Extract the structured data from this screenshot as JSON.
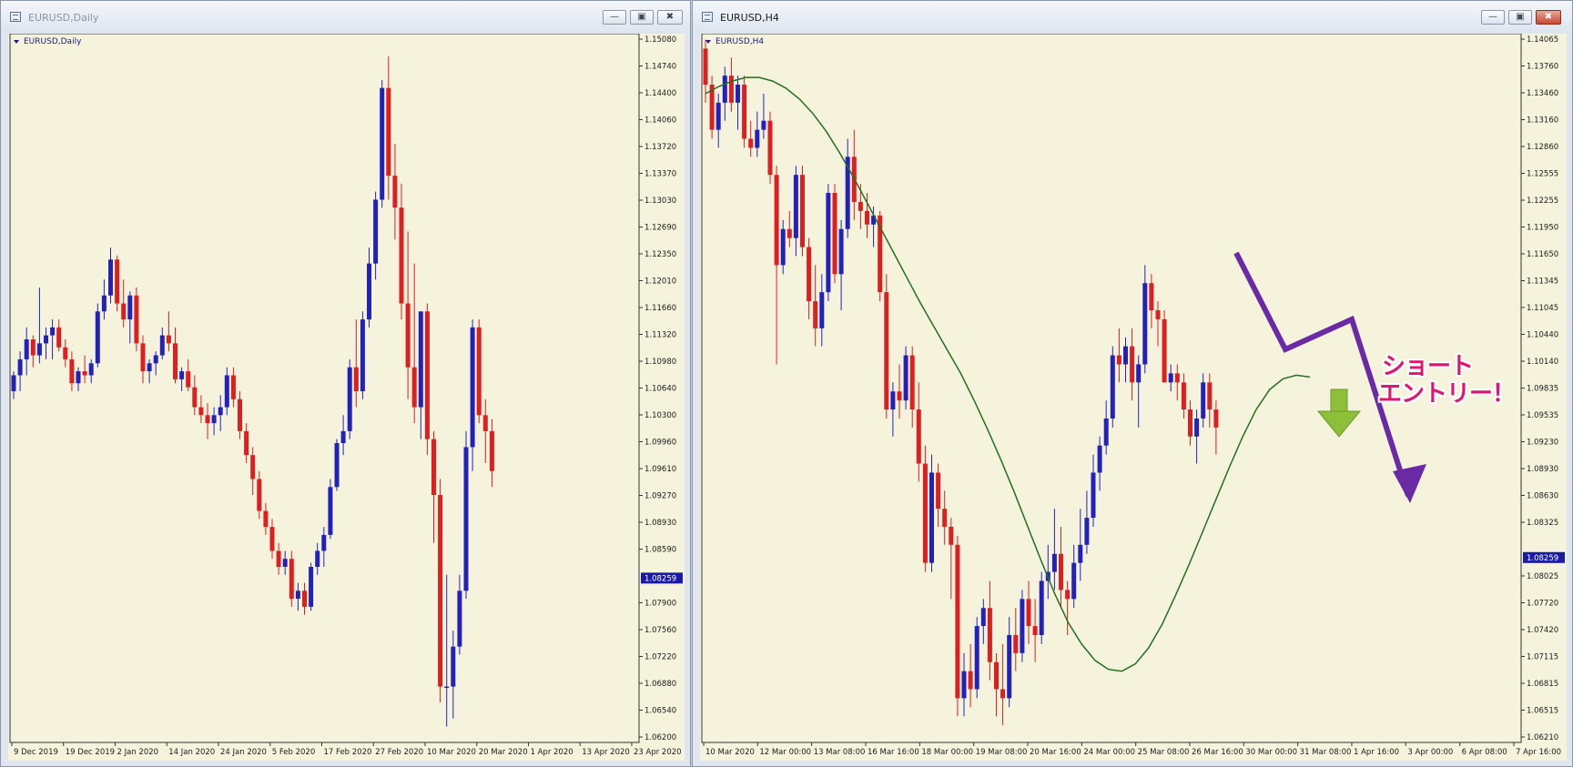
{
  "colors": {
    "bull": "#2222bb",
    "bear": "#dd1f1f",
    "ma": "#207020",
    "background": "#f6f3dd",
    "annotation": "#e0146e",
    "arrow_purple": "#6a2aa6",
    "arrow_green": "#8dbf3a"
  },
  "windows": [
    {
      "title": "EURUSD,Daily",
      "symbol_label": "EURUSD,Daily",
      "price_badge": "1.08259",
      "state": "inactive"
    },
    {
      "title": "EURUSD,H4",
      "symbol_label": "EURUSD,H4",
      "price_badge": "1.08259",
      "state": "active"
    }
  ],
  "annotation": {
    "line1": "ショート",
    "line2": "エントリー！"
  },
  "icons": {
    "window_icon": "chart-window-icon",
    "minimize": "minimize-icon",
    "maximize": "maximize-icon",
    "close": "close-icon",
    "entry_arrow": "green-down-arrow-icon"
  },
  "chart_data": [
    {
      "type": "candlestick",
      "title": "EURUSD,Daily",
      "y_ticks": [
        "1.15080",
        "1.14740",
        "1.14400",
        "1.14060",
        "1.13720",
        "1.13370",
        "1.13030",
        "1.12690",
        "1.12350",
        "1.12010",
        "1.11660",
        "1.11320",
        "1.10980",
        "1.10640",
        "1.10300",
        "1.09960",
        "1.09610",
        "1.09270",
        "1.08930",
        "1.08590",
        "1.08259",
        "1.07900",
        "1.07560",
        "1.07220",
        "1.06880",
        "1.06540",
        "1.06200"
      ],
      "ylim": [
        1.062,
        1.1508
      ],
      "x_ticks": [
        "9 Dec 2019",
        "19 Dec 2019",
        "2 Jan 2020",
        "14 Jan 2020",
        "24 Jan 2020",
        "5 Feb 2020",
        "17 Feb 2020",
        "27 Feb 2020",
        "10 Mar 2020",
        "20 Mar 2020",
        "1 Apr 2020",
        "13 Apr 2020",
        "23 Apr 2020"
      ],
      "current_price": 1.08259,
      "candles": [
        [
          1.106,
          1.1085,
          1.105,
          1.108
        ],
        [
          1.108,
          1.111,
          1.106,
          1.11
        ],
        [
          1.11,
          1.114,
          1.108,
          1.1125
        ],
        [
          1.1125,
          1.113,
          1.109,
          1.1105
        ],
        [
          1.1105,
          1.119,
          1.1095,
          1.112
        ],
        [
          1.112,
          1.114,
          1.11,
          1.113
        ],
        [
          1.113,
          1.115,
          1.11,
          1.114
        ],
        [
          1.114,
          1.115,
          1.111,
          1.1115
        ],
        [
          1.1115,
          1.1125,
          1.109,
          1.11
        ],
        [
          1.11,
          1.111,
          1.106,
          1.107
        ],
        [
          1.107,
          1.109,
          1.106,
          1.1085
        ],
        [
          1.1085,
          1.1105,
          1.107,
          1.108
        ],
        [
          1.108,
          1.11,
          1.107,
          1.1095
        ],
        [
          1.1095,
          1.117,
          1.109,
          1.116
        ],
        [
          1.116,
          1.12,
          1.115,
          1.118
        ],
        [
          1.118,
          1.124,
          1.117,
          1.1225
        ],
        [
          1.1225,
          1.123,
          1.116,
          1.117
        ],
        [
          1.117,
          1.12,
          1.114,
          1.115
        ],
        [
          1.115,
          1.1185,
          1.112,
          1.118
        ],
        [
          1.118,
          1.119,
          1.111,
          1.112
        ],
        [
          1.112,
          1.113,
          1.107,
          1.1085
        ],
        [
          1.1085,
          1.11,
          1.107,
          1.1095
        ],
        [
          1.1095,
          1.111,
          1.108,
          1.1105
        ],
        [
          1.1105,
          1.114,
          1.11,
          1.113
        ],
        [
          1.113,
          1.116,
          1.111,
          1.112
        ],
        [
          1.112,
          1.114,
          1.107,
          1.1075
        ],
        [
          1.1075,
          1.109,
          1.106,
          1.1085
        ],
        [
          1.1085,
          1.11,
          1.106,
          1.1065
        ],
        [
          1.1065,
          1.108,
          1.103,
          1.104
        ],
        [
          1.104,
          1.1055,
          1.102,
          1.103
        ],
        [
          1.103,
          1.1045,
          1.1,
          1.102
        ],
        [
          1.102,
          1.104,
          1.1005,
          1.103
        ],
        [
          1.103,
          1.1055,
          1.101,
          1.104
        ],
        [
          1.104,
          1.109,
          1.103,
          1.108
        ],
        [
          1.108,
          1.109,
          1.104,
          1.105
        ],
        [
          1.105,
          1.106,
          1.1,
          1.101
        ],
        [
          1.101,
          1.102,
          1.097,
          1.098
        ],
        [
          1.098,
          1.099,
          1.093,
          1.095
        ],
        [
          1.095,
          1.096,
          1.09,
          1.091
        ],
        [
          1.091,
          1.092,
          1.088,
          1.089
        ],
        [
          1.089,
          1.09,
          1.085,
          1.086
        ],
        [
          1.086,
          1.087,
          1.083,
          1.084
        ],
        [
          1.084,
          1.086,
          1.083,
          1.085
        ],
        [
          1.085,
          1.086,
          1.079,
          1.08
        ],
        [
          1.08,
          1.082,
          1.0785,
          1.081
        ],
        [
          1.081,
          1.082,
          1.078,
          1.079
        ],
        [
          1.079,
          1.0845,
          1.0785,
          1.084
        ],
        [
          1.084,
          1.087,
          1.083,
          1.086
        ],
        [
          1.086,
          1.089,
          1.084,
          1.088
        ],
        [
          1.088,
          1.095,
          1.0875,
          1.094
        ],
        [
          1.094,
          1.1,
          1.0935,
          1.0995
        ],
        [
          1.0995,
          1.103,
          1.098,
          1.101
        ],
        [
          1.101,
          1.11,
          1.1,
          1.109
        ],
        [
          1.109,
          1.115,
          1.104,
          1.106
        ],
        [
          1.106,
          1.116,
          1.105,
          1.115
        ],
        [
          1.115,
          1.124,
          1.114,
          1.122
        ],
        [
          1.122,
          1.131,
          1.12,
          1.13
        ],
        [
          1.13,
          1.145,
          1.129,
          1.144
        ],
        [
          1.144,
          1.148,
          1.13,
          1.133
        ],
        [
          1.133,
          1.137,
          1.125,
          1.129
        ],
        [
          1.129,
          1.132,
          1.115,
          1.117
        ],
        [
          1.117,
          1.126,
          1.105,
          1.109
        ],
        [
          1.109,
          1.122,
          1.102,
          1.104
        ],
        [
          1.104,
          1.116,
          1.1,
          1.116
        ],
        [
          1.116,
          1.117,
          1.098,
          1.1
        ],
        [
          1.1,
          1.101,
          1.087,
          1.093
        ],
        [
          1.093,
          1.095,
          1.067,
          1.069
        ],
        [
          1.069,
          1.083,
          1.064,
          1.069
        ],
        [
          1.069,
          1.076,
          1.065,
          1.074
        ],
        [
          1.074,
          1.083,
          1.073,
          1.081
        ],
        [
          1.081,
          1.101,
          1.08,
          1.099
        ],
        [
          1.099,
          1.115,
          1.096,
          1.114
        ],
        [
          1.114,
          1.115,
          1.102,
          1.103
        ],
        [
          1.103,
          1.105,
          1.097,
          1.101
        ],
        [
          1.101,
          1.1025,
          1.094,
          1.096
        ]
      ]
    },
    {
      "type": "candlestick",
      "title": "EURUSD,H4",
      "y_ticks": [
        "1.14065",
        "1.13760",
        "1.13460",
        "1.13160",
        "1.12860",
        "1.12555",
        "1.12255",
        "1.11950",
        "1.11650",
        "1.11345",
        "1.11045",
        "1.10440",
        "1.10140",
        "1.09835",
        "1.09535",
        "1.09230",
        "1.08930",
        "1.08630",
        "1.08325",
        "1.08259",
        "1.08025",
        "1.07720",
        "1.07420",
        "1.07115",
        "1.06815",
        "1.06515",
        "1.06210"
      ],
      "ylim": [
        1.0621,
        1.14065
      ],
      "x_ticks": [
        "10 Mar 2020",
        "12 Mar 00:00",
        "13 Mar 08:00",
        "16 Mar 16:00",
        "18 Mar 00:00",
        "19 Mar 08:00",
        "20 Mar 16:00",
        "24 Mar 00:00",
        "25 Mar 08:00",
        "26 Mar 16:00",
        "30 Mar 00:00",
        "31 Mar 08:00",
        "1 Apr 16:00",
        "3 Apr 00:00",
        "6 Apr 08:00",
        "7 Apr 16:00"
      ],
      "current_price": 1.08259,
      "candles": [
        [
          1.139,
          1.14,
          1.133,
          1.135
        ],
        [
          1.135,
          1.136,
          1.129,
          1.13
        ],
        [
          1.13,
          1.134,
          1.128,
          1.133
        ],
        [
          1.133,
          1.137,
          1.131,
          1.136
        ],
        [
          1.136,
          1.138,
          1.132,
          1.133
        ],
        [
          1.133,
          1.136,
          1.13,
          1.135
        ],
        [
          1.135,
          1.136,
          1.128,
          1.129
        ],
        [
          1.129,
          1.131,
          1.127,
          1.128
        ],
        [
          1.128,
          1.132,
          1.127,
          1.13
        ],
        [
          1.13,
          1.134,
          1.129,
          1.131
        ],
        [
          1.131,
          1.132,
          1.124,
          1.125
        ],
        [
          1.125,
          1.126,
          1.104,
          1.115
        ],
        [
          1.115,
          1.12,
          1.114,
          1.119
        ],
        [
          1.119,
          1.121,
          1.117,
          1.118
        ],
        [
          1.118,
          1.126,
          1.116,
          1.125
        ],
        [
          1.125,
          1.126,
          1.116,
          1.117
        ],
        [
          1.117,
          1.118,
          1.109,
          1.111
        ],
        [
          1.111,
          1.115,
          1.106,
          1.108
        ],
        [
          1.108,
          1.114,
          1.106,
          1.112
        ],
        [
          1.112,
          1.124,
          1.111,
          1.123
        ],
        [
          1.123,
          1.124,
          1.113,
          1.114
        ],
        [
          1.114,
          1.12,
          1.11,
          1.119
        ],
        [
          1.119,
          1.129,
          1.118,
          1.127
        ],
        [
          1.127,
          1.13,
          1.12,
          1.122
        ],
        [
          1.122,
          1.124,
          1.119,
          1.121
        ],
        [
          1.121,
          1.123,
          1.118,
          1.1195
        ],
        [
          1.1195,
          1.1215,
          1.117,
          1.1205
        ],
        [
          1.1205,
          1.121,
          1.111,
          1.112
        ],
        [
          1.112,
          1.114,
          1.098,
          1.099
        ],
        [
          1.099,
          1.102,
          1.096,
          1.101
        ],
        [
          1.101,
          1.104,
          1.098,
          1.1
        ],
        [
          1.1,
          1.106,
          1.099,
          1.105
        ],
        [
          1.105,
          1.106,
          1.097,
          1.099
        ],
        [
          1.099,
          1.102,
          1.091,
          1.093
        ],
        [
          1.093,
          1.095,
          1.081,
          1.082
        ],
        [
          1.082,
          1.094,
          1.081,
          1.092
        ],
        [
          1.092,
          1.093,
          1.086,
          1.088
        ],
        [
          1.088,
          1.09,
          1.084,
          1.086
        ],
        [
          1.086,
          1.087,
          1.078,
          1.084
        ],
        [
          1.084,
          1.085,
          1.065,
          1.067
        ],
        [
          1.067,
          1.072,
          1.065,
          1.07
        ],
        [
          1.07,
          1.073,
          1.066,
          1.068
        ],
        [
          1.068,
          1.076,
          1.067,
          1.075
        ],
        [
          1.075,
          1.078,
          1.073,
          1.077
        ],
        [
          1.077,
          1.08,
          1.069,
          1.071
        ],
        [
          1.071,
          1.072,
          1.065,
          1.068
        ],
        [
          1.068,
          1.073,
          1.064,
          1.067
        ],
        [
          1.067,
          1.076,
          1.066,
          1.074
        ],
        [
          1.074,
          1.077,
          1.07,
          1.072
        ],
        [
          1.072,
          1.079,
          1.071,
          1.078
        ],
        [
          1.078,
          1.08,
          1.073,
          1.075
        ],
        [
          1.075,
          1.078,
          1.071,
          1.074
        ],
        [
          1.074,
          1.081,
          1.073,
          1.08
        ],
        [
          1.08,
          1.084,
          1.078,
          1.081
        ],
        [
          1.081,
          1.088,
          1.079,
          1.083
        ],
        [
          1.083,
          1.086,
          1.077,
          1.079
        ],
        [
          1.079,
          1.08,
          1.074,
          1.078
        ],
        [
          1.078,
          1.084,
          1.077,
          1.082
        ],
        [
          1.082,
          1.088,
          1.08,
          1.084
        ],
        [
          1.084,
          1.09,
          1.083,
          1.087
        ],
        [
          1.087,
          1.094,
          1.086,
          1.092
        ],
        [
          1.092,
          1.096,
          1.09,
          1.095
        ],
        [
          1.095,
          1.1,
          1.094,
          1.098
        ],
        [
          1.098,
          1.106,
          1.097,
          1.105
        ],
        [
          1.105,
          1.108,
          1.102,
          1.104
        ],
        [
          1.104,
          1.107,
          1.102,
          1.106
        ],
        [
          1.106,
          1.108,
          1.1,
          1.102
        ],
        [
          1.102,
          1.105,
          1.097,
          1.104
        ],
        [
          1.104,
          1.115,
          1.103,
          1.113
        ],
        [
          1.113,
          1.114,
          1.108,
          1.11
        ],
        [
          1.11,
          1.111,
          1.106,
          1.109
        ],
        [
          1.109,
          1.11,
          1.102,
          1.102
        ],
        [
          1.102,
          1.104,
          1.101,
          1.103
        ],
        [
          1.103,
          1.104,
          1.1,
          1.102
        ],
        [
          1.102,
          1.103,
          1.098,
          1.099
        ],
        [
          1.099,
          1.1,
          1.095,
          1.096
        ],
        [
          1.096,
          1.099,
          1.093,
          1.098
        ],
        [
          1.098,
          1.103,
          1.097,
          1.102
        ],
        [
          1.102,
          1.103,
          1.097,
          1.099
        ],
        [
          1.099,
          1.1,
          1.094,
          1.097
        ]
      ],
      "ma": [
        1.134,
        1.1348,
        1.1354,
        1.1358,
        1.1358,
        1.1354,
        1.1346,
        1.1334,
        1.1318,
        1.1298,
        1.1274,
        1.1248,
        1.122,
        1.1192,
        1.1164,
        1.1136,
        1.1108,
        1.1082,
        1.1056,
        1.103,
        1.1,
        1.0968,
        1.0934,
        1.0898,
        1.086,
        1.0822,
        1.0786,
        1.0754,
        1.073,
        1.0712,
        1.0702,
        1.07,
        1.0708,
        1.0726,
        1.0752,
        1.0784,
        1.0818,
        1.0854,
        1.089,
        1.0926,
        1.096,
        1.099,
        1.1012,
        1.1024,
        1.1028,
        1.1026
      ]
    }
  ]
}
